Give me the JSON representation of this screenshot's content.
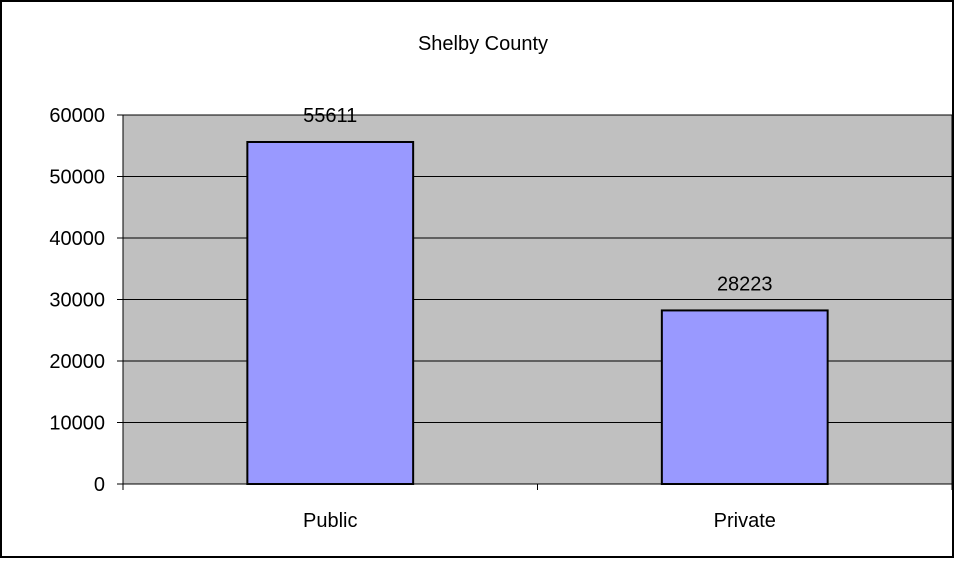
{
  "chart_data": {
    "type": "bar",
    "title": "Shelby County",
    "categories": [
      "Public",
      "Private"
    ],
    "values": [
      55611,
      28223
    ],
    "data_labels": [
      "55611",
      "28223"
    ],
    "yticks": [
      "0",
      "10000",
      "20000",
      "30000",
      "40000",
      "50000",
      "60000"
    ],
    "ylim": [
      0,
      60000
    ],
    "xlabel": "",
    "ylabel": "",
    "grid": true,
    "legend": "none",
    "colors": {
      "plot_area": "#c0c0c0",
      "bar_fill": "#9999ff",
      "bar_stroke": "#000000",
      "gridline": "#000000",
      "border": "#000000",
      "background": "#ffffff"
    }
  }
}
